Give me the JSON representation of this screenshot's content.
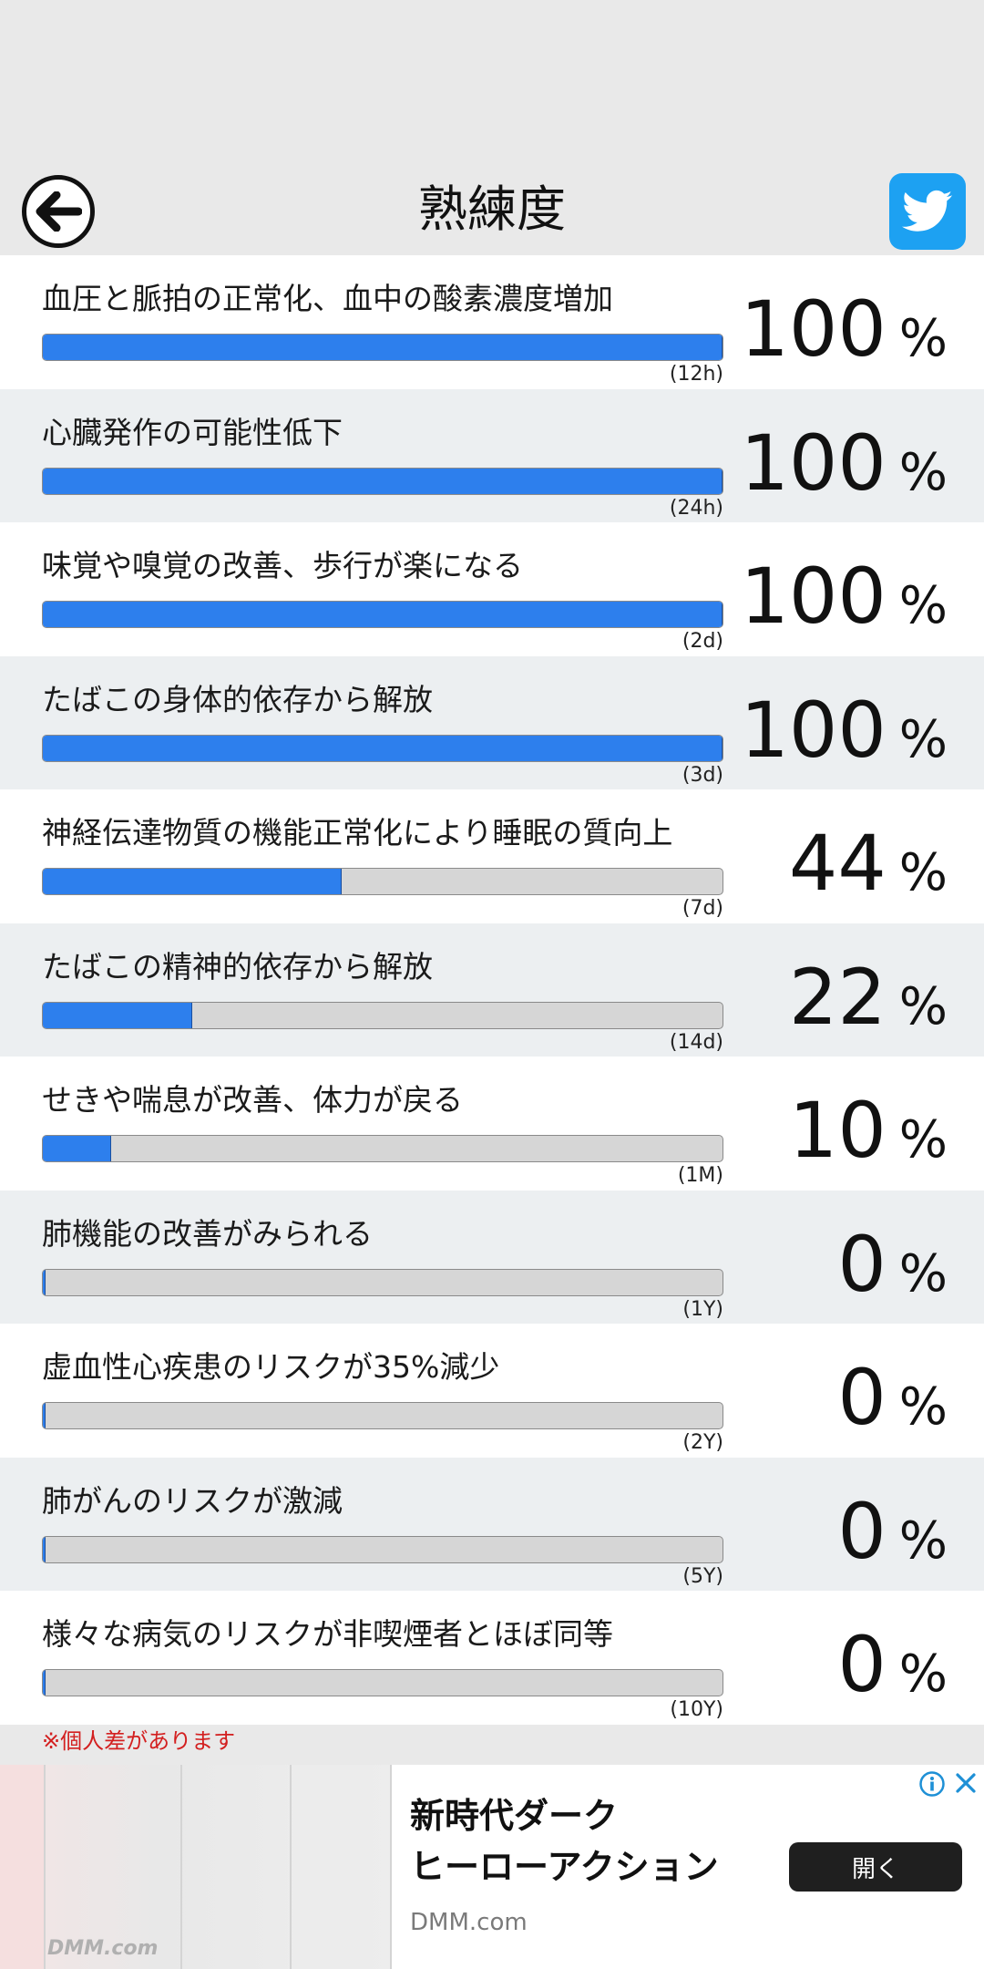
{
  "header": {
    "title": "熟練度",
    "back_icon": "arrow-left-icon",
    "share_icon": "twitter-icon",
    "share_color": "#1da1f2"
  },
  "milestones": [
    {
      "label": "血圧と脈拍の正常化、血中の酸素濃度増加",
      "progress": 100,
      "percent_text": "100",
      "duration": "(12h)"
    },
    {
      "label": "心臓発作の可能性低下",
      "progress": 100,
      "percent_text": "100",
      "duration": "(24h)"
    },
    {
      "label": "味覚や嗅覚の改善、歩行が楽になる",
      "progress": 100,
      "percent_text": "100",
      "duration": "(2d)"
    },
    {
      "label": "たばこの身体的依存から解放",
      "progress": 100,
      "percent_text": "100",
      "duration": "(3d)"
    },
    {
      "label": "神経伝達物質の機能正常化により睡眠の質向上",
      "progress": 44,
      "percent_text": "44",
      "duration": "(7d)"
    },
    {
      "label": "たばこの精神的依存から解放",
      "progress": 22,
      "percent_text": "22",
      "duration": "(14d)"
    },
    {
      "label": "せきや喘息が改善、体力が戻る",
      "progress": 10,
      "percent_text": "10",
      "duration": "(1M)"
    },
    {
      "label": "肺機能の改善がみられる",
      "progress": 0,
      "percent_text": "0",
      "duration": "(1Y)"
    },
    {
      "label": "虚血性心疾患のリスクが35%減少",
      "progress": 0,
      "percent_text": "0",
      "duration": "(2Y)"
    },
    {
      "label": "肺がんのリスクが激減",
      "progress": 0,
      "percent_text": "0",
      "duration": "(5Y)"
    },
    {
      "label": "様々な病気のリスクが非喫煙者とほぼ同等",
      "progress": 0,
      "percent_text": "0",
      "duration": "(10Y)"
    }
  ],
  "percent_sign": "%",
  "note": "※個人差があります",
  "ad": {
    "title_line1": "新時代ダーク",
    "title_line2": "ヒーローアクション",
    "domain": "DMM.com",
    "image_logo": "DMM.com",
    "open_button": "開く",
    "info_icon": "info-icon",
    "close_icon": "close-icon"
  },
  "colors": {
    "progress_fill": "#2d7fed",
    "track": "#d6d6d6",
    "note": "#d32020"
  }
}
